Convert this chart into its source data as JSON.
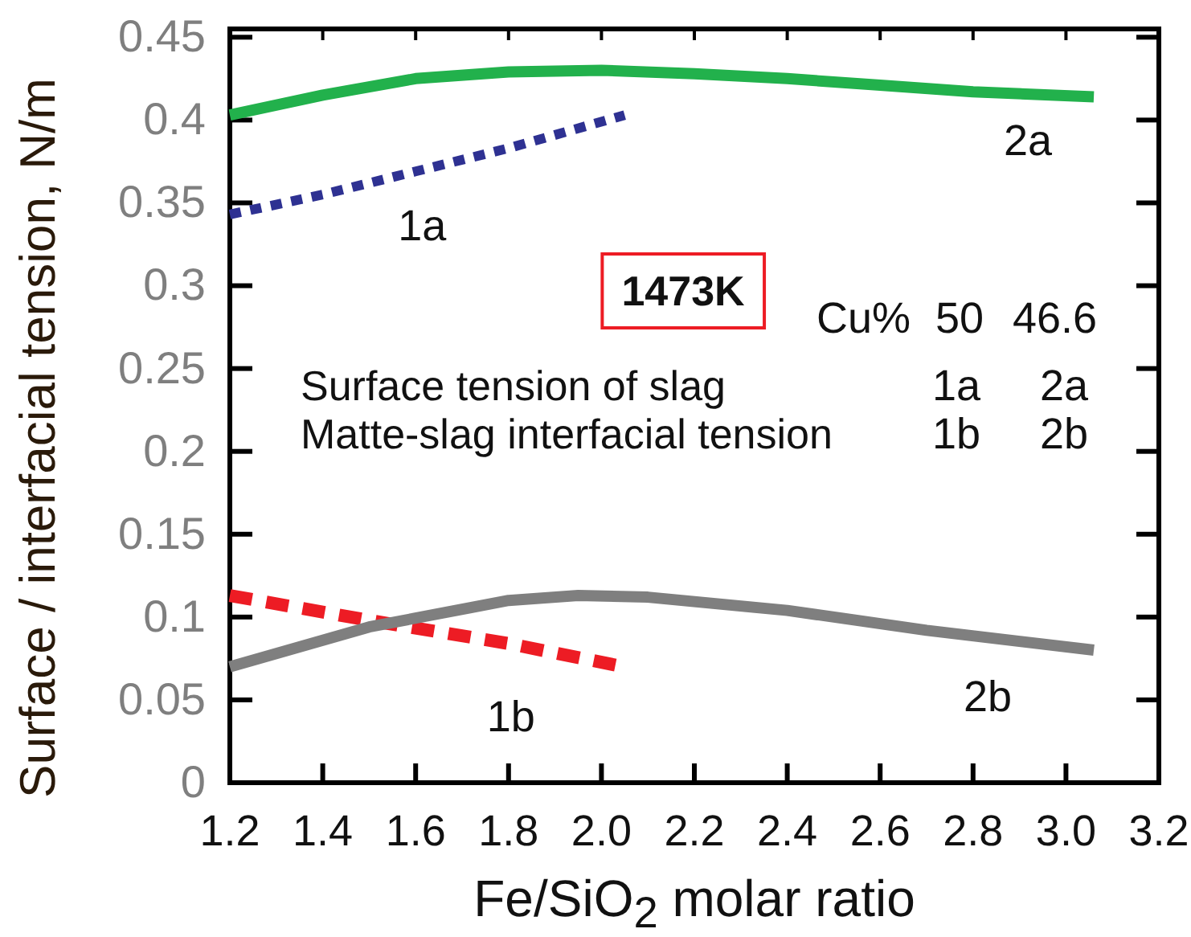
{
  "chart_data": {
    "type": "line",
    "xlabel": "Fe/SiO$_{2}$ molar ratio",
    "ylabel": "Surface / interfacial tension, N/m",
    "xlim": [
      1.2,
      3.2
    ],
    "ylim": [
      0,
      0.455
    ],
    "xticks": [
      {
        "value": 1.2,
        "label": "1.2"
      },
      {
        "value": 1.4,
        "label": "1.4"
      },
      {
        "value": 1.6,
        "label": "1.6"
      },
      {
        "value": 1.8,
        "label": "1.8"
      },
      {
        "value": 2.0,
        "label": "2.0"
      },
      {
        "value": 2.2,
        "label": "2.2"
      },
      {
        "value": 2.4,
        "label": "2.4"
      },
      {
        "value": 2.6,
        "label": "2.6"
      },
      {
        "value": 2.8,
        "label": "2.8"
      },
      {
        "value": 3.0,
        "label": "3.0"
      },
      {
        "value": 3.2,
        "label": "3.2"
      }
    ],
    "yticks": [
      0,
      0.05,
      0.1,
      0.15,
      0.2,
      0.25,
      0.3,
      0.35,
      0.4,
      0.45
    ],
    "grid": false,
    "marker": "none",
    "series": [
      {
        "name": "2a",
        "color": "#22b14c",
        "line_style": "solid",
        "x": [
          1.2,
          1.4,
          1.6,
          1.8,
          2.0,
          2.2,
          2.4,
          2.6,
          2.8,
          3.06
        ],
        "values": [
          0.403,
          0.415,
          0.425,
          0.429,
          0.43,
          0.428,
          0.425,
          0.421,
          0.417,
          0.414
        ]
      },
      {
        "name": "1a",
        "color": "#2e3192",
        "line_style": "dotted",
        "x": [
          1.2,
          1.4,
          1.6,
          1.8,
          2.05
        ],
        "values": [
          0.343,
          0.355,
          0.369,
          0.383,
          0.403
        ]
      },
      {
        "name": "1b",
        "color": "#ed1c24",
        "line_style": "dashed",
        "x": [
          1.2,
          1.5,
          1.8,
          2.03
        ],
        "values": [
          0.113,
          0.098,
          0.084,
          0.071
        ]
      },
      {
        "name": "2b",
        "color": "#7f7f7f",
        "line_style": "solid",
        "x": [
          1.2,
          1.5,
          1.8,
          1.95,
          2.1,
          2.4,
          2.7,
          3.06
        ],
        "values": [
          0.07,
          0.094,
          0.11,
          0.113,
          0.112,
          0.104,
          0.092,
          0.08
        ]
      }
    ],
    "annotations": [
      "1473K",
      "Cu%",
      "50",
      "46.6",
      "Surface tension of slag",
      "1a",
      "2a",
      "Matte-slag interfacial tension",
      "1b",
      "2b"
    ]
  }
}
